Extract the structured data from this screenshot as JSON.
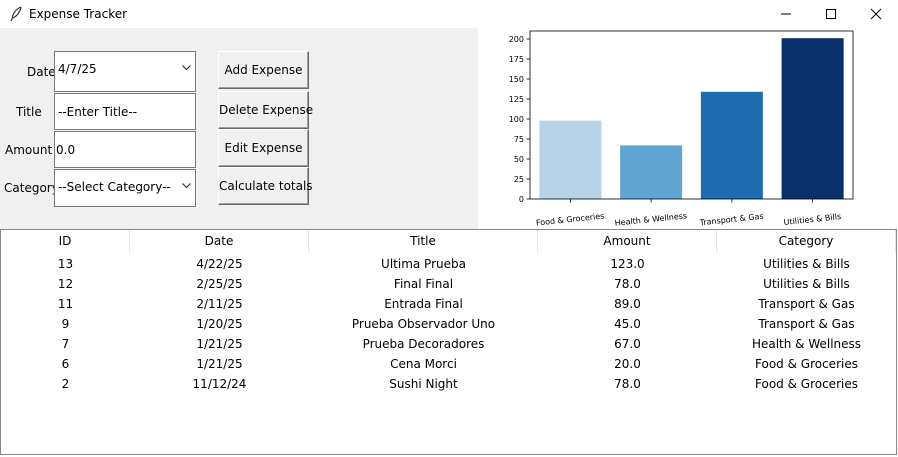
{
  "window": {
    "title": "Expense Tracker",
    "icon": "feather-icon",
    "controls": [
      "minimize-icon",
      "maximize-icon",
      "close-icon"
    ]
  },
  "form": {
    "date_label": "Date",
    "date_value": "4/7/25",
    "title_label": "Title",
    "title_value": "--Enter Title--",
    "amount_label": "Amount",
    "amount_value": "0.0",
    "category_label": "Category",
    "category_value": "--Select Category--"
  },
  "buttons": {
    "add": "Add Expense",
    "delete": "Delete Expense",
    "edit": "Edit Expense",
    "totals": "Calculate totals"
  },
  "chart_data": {
    "type": "bar",
    "categories": [
      "Food & Groceries",
      "Health & Wellness",
      "Transport & Gas",
      "Utilities & Bills"
    ],
    "values": [
      98,
      67,
      134,
      201
    ],
    "ylim": [
      0,
      210
    ],
    "yticks": [
      0,
      25,
      50,
      75,
      100,
      125,
      150,
      175,
      200
    ],
    "colors": [
      "#b6d3e8",
      "#60a5d2",
      "#1f6cb1",
      "#0a2f6b"
    ],
    "grid": false
  },
  "table": {
    "columns": [
      "ID",
      "Date",
      "Title",
      "Amount",
      "Category"
    ],
    "rows": [
      [
        "13",
        "4/22/25",
        "Ultima Prueba",
        "123.0",
        "Utilities & Bills"
      ],
      [
        "12",
        "2/25/25",
        "Final Final",
        "78.0",
        "Utilities & Bills"
      ],
      [
        "11",
        "2/11/25",
        "Entrada Final",
        "89.0",
        "Transport & Gas"
      ],
      [
        "9",
        "1/20/25",
        "Prueba Observador Uno",
        "45.0",
        "Transport & Gas"
      ],
      [
        "7",
        "1/21/25",
        "Prueba Decoradores",
        "67.0",
        "Health & Wellness"
      ],
      [
        "6",
        "1/21/25",
        "Cena Morci",
        "20.0",
        "Food & Groceries"
      ],
      [
        "2",
        "11/12/24",
        "Sushi Night",
        "78.0",
        "Food & Groceries"
      ]
    ]
  }
}
